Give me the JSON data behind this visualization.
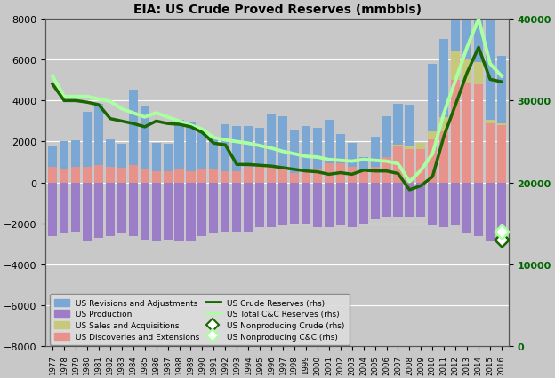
{
  "title": "EIA: US Crude Proved Reserves (mmbbls)",
  "years": [
    1977,
    1978,
    1979,
    1980,
    1981,
    1982,
    1983,
    1984,
    1985,
    1986,
    1987,
    1988,
    1989,
    1990,
    1991,
    1992,
    1993,
    1994,
    1995,
    1996,
    1997,
    1998,
    1999,
    2000,
    2001,
    2002,
    2003,
    2004,
    2005,
    2006,
    2007,
    2008,
    2009,
    2010,
    2011,
    2012,
    2013,
    2014,
    2015,
    2016
  ],
  "revisions": [
    1000,
    1350,
    1300,
    2700,
    3000,
    1350,
    1200,
    3700,
    3100,
    1400,
    1350,
    2400,
    2400,
    1900,
    1500,
    2300,
    2200,
    2000,
    1900,
    2600,
    2600,
    2100,
    2100,
    2000,
    2100,
    1400,
    1200,
    700,
    1500,
    2000,
    2000,
    2000,
    0,
    3300,
    3800,
    4500,
    5000,
    4700,
    5000,
    3300
  ],
  "production": [
    -2600,
    -2500,
    -2400,
    -2900,
    -2700,
    -2600,
    -2500,
    -2600,
    -2800,
    -2900,
    -2800,
    -2900,
    -2900,
    -2600,
    -2500,
    -2400,
    -2400,
    -2400,
    -2200,
    -2200,
    -2100,
    -2000,
    -2000,
    -2200,
    -2200,
    -2100,
    -2200,
    -2000,
    -1800,
    -1700,
    -1700,
    -1700,
    -1700,
    -2100,
    -2200,
    -2100,
    -2500,
    -2600,
    -2900,
    -2700
  ],
  "sales": [
    0,
    0,
    0,
    0,
    0,
    0,
    0,
    0,
    0,
    0,
    0,
    0,
    0,
    0,
    0,
    0,
    0,
    0,
    0,
    0,
    0,
    0,
    0,
    0,
    0,
    0,
    0,
    0,
    0,
    0,
    100,
    150,
    300,
    400,
    700,
    1400,
    1100,
    1100,
    150,
    100
  ],
  "discoveries": [
    750,
    650,
    750,
    750,
    850,
    750,
    700,
    850,
    650,
    550,
    550,
    650,
    550,
    650,
    650,
    550,
    550,
    750,
    750,
    750,
    650,
    450,
    650,
    650,
    950,
    950,
    750,
    550,
    750,
    1250,
    1750,
    1650,
    1650,
    2100,
    2500,
    5000,
    4900,
    4800,
    2900,
    2800
  ],
  "crude_reserves_rhs": [
    32000,
    30000,
    30000,
    29800,
    29500,
    27800,
    27500,
    27200,
    26800,
    27500,
    27200,
    27100,
    26800,
    26100,
    24800,
    24600,
    22200,
    22200,
    22100,
    22000,
    21800,
    21600,
    21400,
    21300,
    21000,
    21200,
    21000,
    21500,
    21400,
    21400,
    21100,
    19100,
    19600,
    20700,
    25700,
    29500,
    33400,
    36500,
    32600,
    32300
  ],
  "total_cc_reserves_rhs": [
    33000,
    30500,
    30500,
    30500,
    30200,
    29900,
    29000,
    28500,
    28000,
    28500,
    28000,
    27500,
    27000,
    26500,
    25500,
    25200,
    25000,
    24800,
    24500,
    24200,
    23800,
    23500,
    23200,
    23100,
    22800,
    22700,
    22600,
    22800,
    22700,
    22600,
    22300,
    20100,
    21500,
    23500,
    28500,
    32500,
    36500,
    40000,
    34500,
    33000
  ],
  "nonproducing_crude_rhs": 13000,
  "nonproducing_cc_rhs": 14000,
  "bar_blue": "#7BA7D4",
  "bar_purple": "#9B7DC8",
  "bar_yellow": "#C8C87D",
  "bar_red": "#E8928C",
  "line_dark_green": "#1A6600",
  "line_light_green": "#AAFFA0",
  "bg_color": "#C8C8C8",
  "ylim_left": [
    -8000,
    8000
  ],
  "ylim_right": [
    0,
    40000
  ],
  "yticks_left": [
    -8000,
    -6000,
    -4000,
    -2000,
    0,
    2000,
    4000,
    6000,
    8000
  ],
  "yticks_right": [
    0,
    10000,
    20000,
    30000,
    40000
  ],
  "legend_labels": [
    "US Revisions and Adjustments",
    "US Production",
    "US Sales and Acquisitions",
    "US Discoveries and Extensions",
    "US Crude Reserves (rhs)",
    "US Total C&C Reserves (rhs)",
    "US Nonproducing Crude (rhs)",
    "US Nonproducing C&C (rhs)"
  ]
}
